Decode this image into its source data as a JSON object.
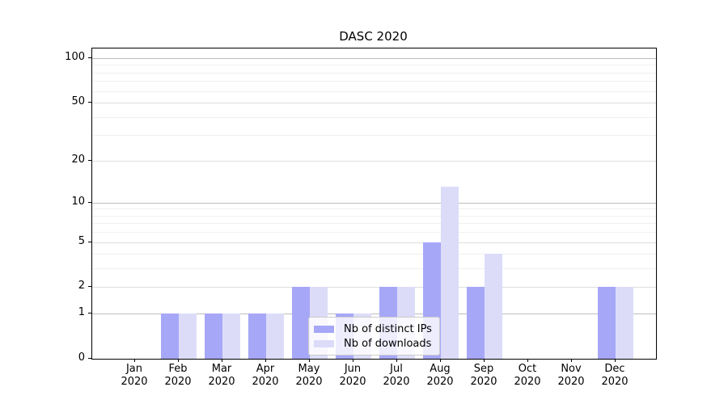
{
  "title": "DASC 2020",
  "legend": {
    "items": [
      {
        "label": "Nb of distinct IPs",
        "color": "#a7a7f8"
      },
      {
        "label": "Nb of downloads",
        "color": "#dcdcf9"
      }
    ]
  },
  "chart_data": {
    "type": "bar",
    "title": "DASC 2020",
    "categories": [
      "Jan 2020",
      "Feb 2020",
      "Mar 2020",
      "Apr 2020",
      "May 2020",
      "Jun 2020",
      "Jul 2020",
      "Aug 2020",
      "Sep 2020",
      "Oct 2020",
      "Nov 2020",
      "Dec 2020"
    ],
    "series": [
      {
        "name": "Nb of distinct IPs",
        "color": "#a7a7f8",
        "values": [
          0,
          1,
          1,
          1,
          2,
          1,
          2,
          5,
          2,
          0,
          0,
          2
        ]
      },
      {
        "name": "Nb of downloads",
        "color": "#dcdcf9",
        "values": [
          0,
          1,
          1,
          1,
          2,
          1,
          2,
          13,
          4,
          0,
          0,
          2
        ]
      }
    ],
    "xlabel": "",
    "ylabel": "",
    "yscale": "log1p",
    "yticks": [
      0,
      1,
      2,
      5,
      10,
      20,
      50,
      100
    ],
    "yticks_minor": [
      3,
      4,
      6,
      7,
      8,
      9,
      30,
      40,
      60,
      70,
      80,
      90
    ],
    "ylim": [
      0,
      115
    ],
    "grid": "horizontal major and minor",
    "legend_position": "lower center, inside plot",
    "grid_colors": {
      "power10": "#bdbdbd",
      "labeled": "#dedede",
      "minor": "#f0f0f0"
    }
  }
}
